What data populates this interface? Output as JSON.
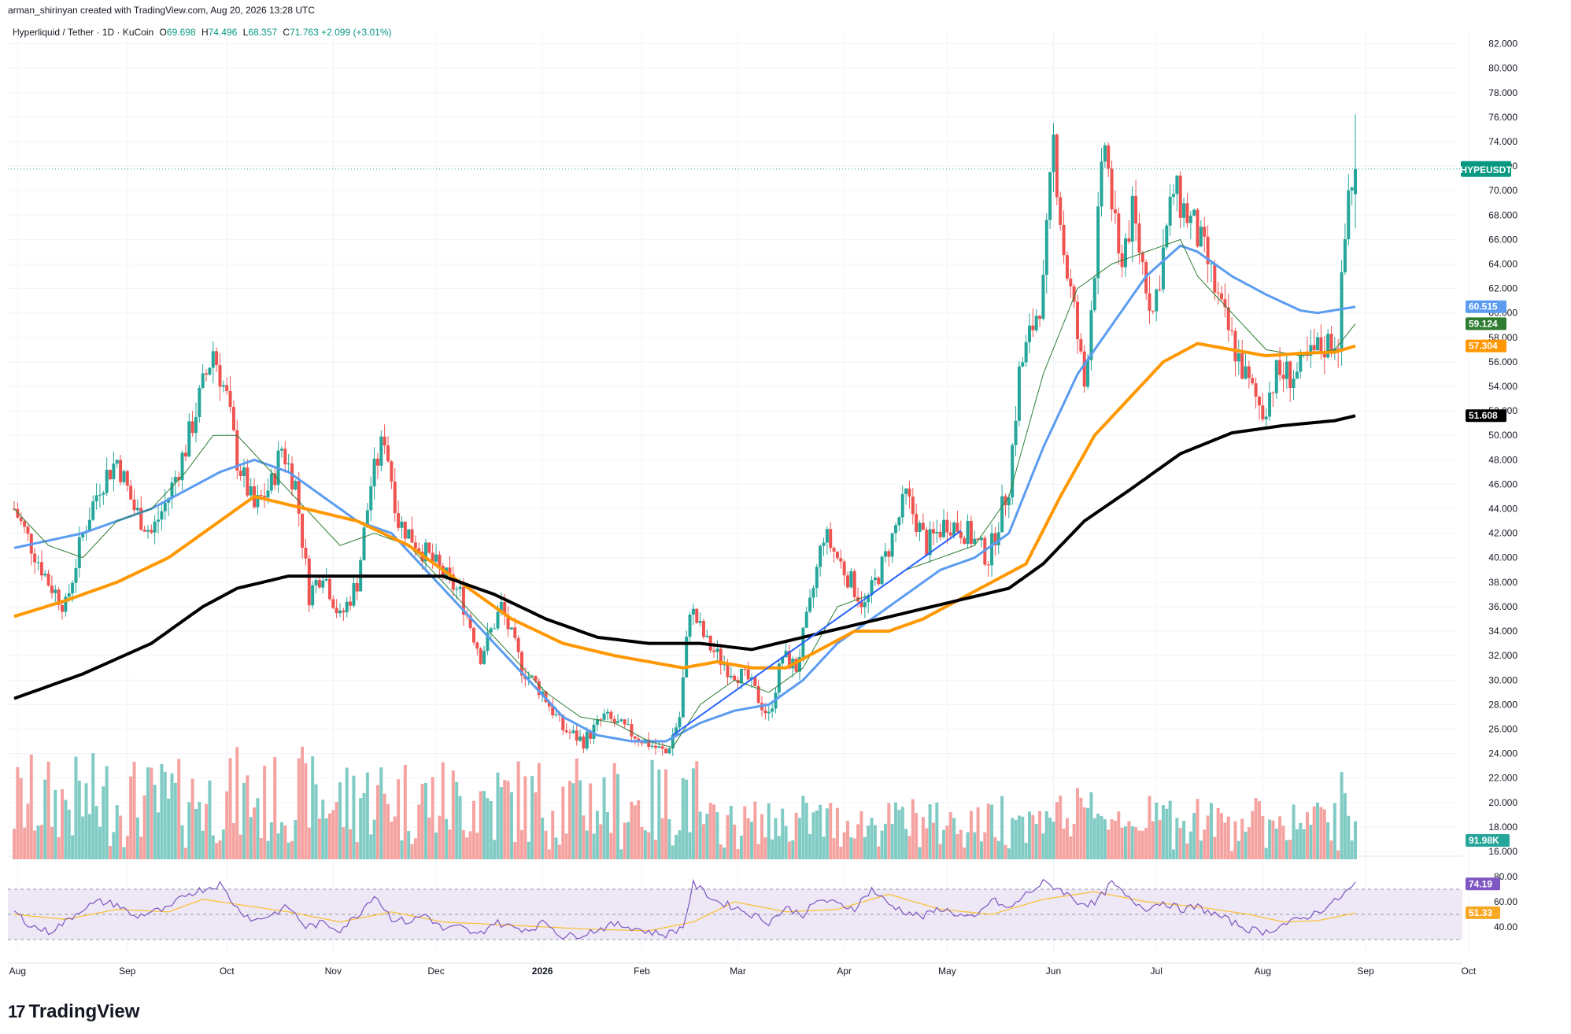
{
  "header": {
    "credit": "arman_shirinyan created with TradingView.com, Aug 20, 2026 13:28 UTC"
  },
  "legend": {
    "symbol": "Hyperliquid / Tether · 1D · KuCoin",
    "o_label": "O",
    "o": "69.698",
    "h_label": "H",
    "h": "74.496",
    "l_label": "L",
    "l": "68.357",
    "c_label": "C",
    "c": "71.763",
    "change": "+2.099 (+3.01%)"
  },
  "footer": {
    "brand": "TradingView",
    "brand_mark": "17"
  },
  "colors": {
    "up": "#26a69a",
    "down": "#ef5350",
    "vol_up": "#80cbc4",
    "vol_down": "#f5a3a1",
    "ma_fast": "#4caf50",
    "ma_blue": "#5b9cf0",
    "ma_orange": "#ff9800",
    "ma_black": "#000000",
    "trendline": "#2962ff",
    "rsi": "#7e57c2",
    "rsi_ma": "#fbc02d",
    "rsi_band": "#ede7f6"
  },
  "chart_data": {
    "type": "candlestick",
    "symbol": "HYPEUSDT",
    "ylim": [
      16,
      83
    ],
    "price_ticks": [
      "82.000",
      "80.000",
      "78.000",
      "76.000",
      "74.000",
      "72.000",
      "70.000",
      "68.000",
      "66.000",
      "64.000",
      "62.000",
      "60.000",
      "58.000",
      "56.000",
      "54.000",
      "52.000",
      "50.000",
      "48.000",
      "46.000",
      "44.000",
      "42.000",
      "40.000",
      "38.000",
      "36.000",
      "34.000",
      "32.000",
      "30.000",
      "28.000",
      "26.000",
      "24.000",
      "22.000",
      "20.000",
      "18.000",
      "16.000"
    ],
    "x_ticks": [
      "Aug",
      "Sep",
      "Oct",
      "Nov",
      "Dec",
      "2026",
      "Feb",
      "Mar",
      "Apr",
      "May",
      "Jun",
      "Jul",
      "Aug",
      "Sep",
      "Oct"
    ],
    "price_anchors": [
      [
        0,
        44
      ],
      [
        5,
        41
      ],
      [
        10,
        38
      ],
      [
        15,
        36
      ],
      [
        20,
        42
      ],
      [
        25,
        46
      ],
      [
        30,
        48
      ],
      [
        35,
        44
      ],
      [
        40,
        42
      ],
      [
        45,
        45
      ],
      [
        50,
        49
      ],
      [
        55,
        54
      ],
      [
        58,
        57
      ],
      [
        62,
        53
      ],
      [
        65,
        48
      ],
      [
        70,
        44
      ],
      [
        75,
        46
      ],
      [
        78,
        49
      ],
      [
        82,
        46
      ],
      [
        86,
        37
      ],
      [
        90,
        39
      ],
      [
        95,
        35
      ],
      [
        100,
        38
      ],
      [
        104,
        46
      ],
      [
        108,
        50
      ],
      [
        112,
        43
      ],
      [
        118,
        41
      ],
      [
        124,
        39
      ],
      [
        130,
        37
      ],
      [
        136,
        32
      ],
      [
        142,
        36
      ],
      [
        148,
        31
      ],
      [
        154,
        29
      ],
      [
        160,
        26
      ],
      [
        166,
        25
      ],
      [
        172,
        27
      ],
      [
        178,
        26
      ],
      [
        184,
        25
      ],
      [
        190,
        24
      ],
      [
        194,
        27
      ],
      [
        197,
        36
      ],
      [
        202,
        33
      ],
      [
        208,
        31
      ],
      [
        214,
        30
      ],
      [
        220,
        27
      ],
      [
        224,
        32
      ],
      [
        228,
        31
      ],
      [
        232,
        36
      ],
      [
        236,
        42
      ],
      [
        242,
        39
      ],
      [
        248,
        36
      ],
      [
        254,
        40
      ],
      [
        260,
        45
      ],
      [
        266,
        41
      ],
      [
        272,
        43
      ],
      [
        278,
        42
      ],
      [
        284,
        40
      ],
      [
        290,
        46
      ],
      [
        293,
        55
      ],
      [
        296,
        58
      ],
      [
        300,
        62
      ],
      [
        303,
        74
      ],
      [
        306,
        65
      ],
      [
        309,
        60
      ],
      [
        312,
        54
      ],
      [
        318,
        74
      ],
      [
        322,
        64
      ],
      [
        326,
        68
      ],
      [
        332,
        60
      ],
      [
        338,
        70
      ],
      [
        344,
        67
      ],
      [
        348,
        64
      ],
      [
        352,
        60
      ],
      [
        356,
        57
      ],
      [
        360,
        54
      ],
      [
        364,
        52
      ],
      [
        368,
        55
      ],
      [
        374,
        55
      ],
      [
        380,
        57
      ],
      [
        386,
        58
      ],
      [
        389,
        70
      ],
      [
        391,
        71.8
      ]
    ],
    "last_index": 391,
    "series": [
      {
        "name": "HYPEUSDT",
        "last": "71.763",
        "last_value": 71.763,
        "color": "#089981"
      },
      {
        "last": "60.515",
        "last_value": 60.515,
        "color": "#5b9cf0",
        "anchors": [
          [
            0,
            40.8
          ],
          [
            20,
            42
          ],
          [
            40,
            44
          ],
          [
            60,
            47
          ],
          [
            70,
            48
          ],
          [
            80,
            47
          ],
          [
            90,
            45
          ],
          [
            100,
            43
          ],
          [
            110,
            42
          ],
          [
            120,
            39
          ],
          [
            130,
            36
          ],
          [
            140,
            33
          ],
          [
            150,
            30
          ],
          [
            160,
            27
          ],
          [
            170,
            25.5
          ],
          [
            180,
            25
          ],
          [
            190,
            25
          ],
          [
            200,
            26.5
          ],
          [
            210,
            27.5
          ],
          [
            220,
            28
          ],
          [
            230,
            30
          ],
          [
            240,
            33
          ],
          [
            250,
            35
          ],
          [
            260,
            37
          ],
          [
            270,
            39
          ],
          [
            280,
            40
          ],
          [
            290,
            42
          ],
          [
            300,
            49
          ],
          [
            310,
            55
          ],
          [
            320,
            59
          ],
          [
            330,
            63
          ],
          [
            340,
            65.5
          ],
          [
            345,
            65
          ],
          [
            355,
            63
          ],
          [
            365,
            61.5
          ],
          [
            375,
            60.2
          ],
          [
            380,
            60
          ],
          [
            391,
            60.5
          ]
        ]
      },
      {
        "last": "59.124",
        "last_value": 59.124,
        "color": "#2e7d32",
        "anchors": [
          [
            0,
            44
          ],
          [
            10,
            41
          ],
          [
            20,
            40
          ],
          [
            30,
            43
          ],
          [
            40,
            44
          ],
          [
            50,
            47
          ],
          [
            58,
            50
          ],
          [
            65,
            50
          ],
          [
            75,
            47
          ],
          [
            85,
            44
          ],
          [
            95,
            41
          ],
          [
            105,
            42
          ],
          [
            115,
            41
          ],
          [
            125,
            38
          ],
          [
            135,
            35
          ],
          [
            145,
            32
          ],
          [
            155,
            29
          ],
          [
            165,
            27
          ],
          [
            175,
            26.5
          ],
          [
            185,
            25
          ],
          [
            192,
            24.5
          ],
          [
            200,
            28
          ],
          [
            210,
            30
          ],
          [
            220,
            29
          ],
          [
            230,
            31
          ],
          [
            240,
            36
          ],
          [
            250,
            37
          ],
          [
            260,
            39
          ],
          [
            270,
            40
          ],
          [
            280,
            41
          ],
          [
            290,
            45
          ],
          [
            300,
            55
          ],
          [
            310,
            62
          ],
          [
            320,
            64
          ],
          [
            330,
            65
          ],
          [
            340,
            66
          ],
          [
            345,
            63
          ],
          [
            355,
            60
          ],
          [
            365,
            57
          ],
          [
            375,
            56.5
          ],
          [
            385,
            57
          ],
          [
            391,
            59.1
          ]
        ]
      },
      {
        "last": "57.304",
        "last_value": 57.304,
        "color": "#ff9800",
        "anchors": [
          [
            0,
            35.2
          ],
          [
            15,
            36.5
          ],
          [
            30,
            38
          ],
          [
            45,
            40
          ],
          [
            60,
            43
          ],
          [
            70,
            45
          ],
          [
            85,
            44
          ],
          [
            100,
            43
          ],
          [
            115,
            41
          ],
          [
            130,
            38
          ],
          [
            145,
            35
          ],
          [
            160,
            33
          ],
          [
            175,
            32
          ],
          [
            185,
            31.5
          ],
          [
            195,
            31
          ],
          [
            205,
            31.5
          ],
          [
            215,
            31
          ],
          [
            225,
            31
          ],
          [
            235,
            32.5
          ],
          [
            245,
            34
          ],
          [
            255,
            34
          ],
          [
            265,
            35
          ],
          [
            275,
            36.5
          ],
          [
            285,
            38
          ],
          [
            295,
            39.5
          ],
          [
            305,
            45
          ],
          [
            315,
            50
          ],
          [
            325,
            53
          ],
          [
            335,
            56
          ],
          [
            345,
            57.5
          ],
          [
            355,
            57
          ],
          [
            365,
            56.5
          ],
          [
            375,
            56.7
          ],
          [
            385,
            56.8
          ],
          [
            391,
            57.3
          ]
        ]
      },
      {
        "last": "51.608",
        "last_value": 51.608,
        "color": "#000000",
        "anchors": [
          [
            0,
            28.5
          ],
          [
            20,
            30.5
          ],
          [
            40,
            33
          ],
          [
            55,
            36
          ],
          [
            65,
            37.5
          ],
          [
            80,
            38.5
          ],
          [
            95,
            38.5
          ],
          [
            110,
            38.5
          ],
          [
            125,
            38.5
          ],
          [
            140,
            37
          ],
          [
            155,
            35
          ],
          [
            170,
            33.5
          ],
          [
            185,
            33
          ],
          [
            200,
            33
          ],
          [
            215,
            32.5
          ],
          [
            230,
            33.5
          ],
          [
            245,
            34.5
          ],
          [
            260,
            35.5
          ],
          [
            275,
            36.5
          ],
          [
            290,
            37.5
          ],
          [
            300,
            39.5
          ],
          [
            312,
            43
          ],
          [
            325,
            45.5
          ],
          [
            340,
            48.5
          ],
          [
            355,
            50.2
          ],
          [
            370,
            50.8
          ],
          [
            385,
            51.2
          ],
          [
            391,
            51.6
          ]
        ]
      }
    ],
    "trendline": [
      [
        192,
        25.5
      ],
      [
        276,
        42.2
      ]
    ],
    "volume_tag": "91.98K",
    "rsi": {
      "ylim": [
        20,
        90
      ],
      "ticks": [
        "80.00",
        "60.00",
        "40.00"
      ],
      "upper_band": 70,
      "lower_band": 30,
      "rsi_last": "74.19",
      "rsi_last_value": 74.19,
      "ma_last": "51.33",
      "ma_last_value": 51.33,
      "anchors": [
        [
          0,
          52
        ],
        [
          5,
          41
        ],
        [
          10,
          36
        ],
        [
          15,
          44
        ],
        [
          20,
          55
        ],
        [
          25,
          60
        ],
        [
          30,
          58
        ],
        [
          35,
          48
        ],
        [
          40,
          52
        ],
        [
          45,
          54
        ],
        [
          50,
          66
        ],
        [
          55,
          70
        ],
        [
          60,
          74
        ],
        [
          65,
          55
        ],
        [
          70,
          45
        ],
        [
          75,
          50
        ],
        [
          80,
          56
        ],
        [
          85,
          40
        ],
        [
          90,
          43
        ],
        [
          95,
          38
        ],
        [
          100,
          49
        ],
        [
          105,
          66
        ],
        [
          110,
          47
        ],
        [
          115,
          44
        ],
        [
          120,
          50
        ],
        [
          125,
          38
        ],
        [
          130,
          40
        ],
        [
          135,
          33
        ],
        [
          140,
          44
        ],
        [
          145,
          40
        ],
        [
          150,
          38
        ],
        [
          155,
          44
        ],
        [
          160,
          32
        ],
        [
          165,
          34
        ],
        [
          170,
          38
        ],
        [
          175,
          42
        ],
        [
          180,
          40
        ],
        [
          185,
          36
        ],
        [
          190,
          34
        ],
        [
          195,
          40
        ],
        [
          198,
          74
        ],
        [
          205,
          60
        ],
        [
          210,
          56
        ],
        [
          215,
          50
        ],
        [
          220,
          44
        ],
        [
          225,
          55
        ],
        [
          230,
          50
        ],
        [
          235,
          62
        ],
        [
          240,
          58
        ],
        [
          245,
          55
        ],
        [
          250,
          70
        ],
        [
          255,
          58
        ],
        [
          260,
          52
        ],
        [
          265,
          48
        ],
        [
          270,
          55
        ],
        [
          275,
          50
        ],
        [
          280,
          46
        ],
        [
          285,
          62
        ],
        [
          290,
          54
        ],
        [
          295,
          66
        ],
        [
          300,
          75
        ],
        [
          305,
          70
        ],
        [
          310,
          60
        ],
        [
          315,
          58
        ],
        [
          320,
          75
        ],
        [
          325,
          62
        ],
        [
          330,
          55
        ],
        [
          335,
          60
        ],
        [
          340,
          54
        ],
        [
          345,
          56
        ],
        [
          350,
          50
        ],
        [
          355,
          44
        ],
        [
          360,
          38
        ],
        [
          365,
          36
        ],
        [
          370,
          42
        ],
        [
          375,
          46
        ],
        [
          380,
          52
        ],
        [
          385,
          60
        ],
        [
          391,
          74
        ]
      ],
      "ma_anchors": [
        [
          0,
          50
        ],
        [
          15,
          46
        ],
        [
          30,
          54
        ],
        [
          45,
          52
        ],
        [
          55,
          62
        ],
        [
          65,
          58
        ],
        [
          80,
          52
        ],
        [
          95,
          44
        ],
        [
          110,
          52
        ],
        [
          125,
          44
        ],
        [
          140,
          42
        ],
        [
          155,
          40
        ],
        [
          170,
          38
        ],
        [
          185,
          37
        ],
        [
          198,
          44
        ],
        [
          210,
          60
        ],
        [
          225,
          52
        ],
        [
          240,
          54
        ],
        [
          255,
          66
        ],
        [
          270,
          54
        ],
        [
          285,
          50
        ],
        [
          300,
          62
        ],
        [
          315,
          68
        ],
        [
          330,
          60
        ],
        [
          345,
          56
        ],
        [
          360,
          50
        ],
        [
          370,
          44
        ],
        [
          380,
          45
        ],
        [
          391,
          51
        ]
      ]
    }
  }
}
